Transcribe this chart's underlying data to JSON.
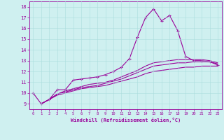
{
  "xlabel": "Windchill (Refroidissement éolien,°C)",
  "bg_color": "#cff0f0",
  "line_color": "#990099",
  "grid_color": "#aadddd",
  "xlim": [
    -0.5,
    23.5
  ],
  "ylim": [
    8.5,
    18.5
  ],
  "xticks": [
    0,
    1,
    2,
    3,
    4,
    5,
    6,
    7,
    8,
    9,
    10,
    11,
    12,
    13,
    14,
    15,
    16,
    17,
    18,
    19,
    20,
    21,
    22,
    23
  ],
  "yticks": [
    9,
    10,
    11,
    12,
    13,
    14,
    15,
    16,
    17,
    18
  ],
  "line1_x": [
    0,
    1,
    2,
    3,
    4,
    5,
    6,
    7,
    8,
    9,
    10,
    11,
    12,
    13,
    14,
    15,
    16,
    17,
    18,
    19,
    20,
    21,
    22,
    23
  ],
  "line1_y": [
    10.0,
    9.0,
    9.4,
    10.3,
    10.3,
    11.2,
    11.3,
    11.4,
    11.5,
    11.7,
    12.0,
    12.4,
    13.2,
    15.2,
    17.0,
    17.8,
    16.7,
    17.2,
    15.8,
    13.4,
    13.0,
    13.0,
    12.9,
    12.6
  ],
  "line2_x": [
    1,
    2,
    3,
    4,
    5,
    6,
    7,
    8,
    9,
    10,
    11,
    12,
    13,
    14,
    15,
    16,
    17,
    18,
    19,
    20,
    21,
    22,
    23
  ],
  "line2_y": [
    9.0,
    9.4,
    9.8,
    10.0,
    10.2,
    10.4,
    10.5,
    10.6,
    10.7,
    10.9,
    11.1,
    11.3,
    11.5,
    11.8,
    12.0,
    12.1,
    12.2,
    12.3,
    12.4,
    12.4,
    12.5,
    12.5,
    12.5
  ],
  "line3_x": [
    1,
    2,
    3,
    4,
    5,
    6,
    7,
    8,
    9,
    10,
    11,
    12,
    13,
    14,
    15,
    16,
    17,
    18,
    19,
    20,
    21,
    22,
    23
  ],
  "line3_y": [
    9.0,
    9.4,
    9.9,
    10.1,
    10.3,
    10.5,
    10.6,
    10.7,
    10.9,
    11.1,
    11.3,
    11.6,
    11.9,
    12.2,
    12.5,
    12.6,
    12.7,
    12.8,
    12.8,
    12.9,
    12.9,
    12.9,
    12.7
  ],
  "line4_x": [
    1,
    2,
    3,
    4,
    5,
    6,
    7,
    8,
    9,
    10,
    11,
    12,
    13,
    14,
    15,
    16,
    17,
    18,
    19,
    20,
    21,
    22,
    23
  ],
  "line4_y": [
    9.0,
    9.4,
    9.9,
    10.2,
    10.4,
    10.6,
    10.8,
    10.9,
    11.0,
    11.2,
    11.5,
    11.8,
    12.1,
    12.5,
    12.8,
    12.9,
    13.0,
    13.1,
    13.1,
    13.1,
    13.1,
    13.0,
    12.8
  ],
  "figsize": [
    3.2,
    2.0
  ],
  "dpi": 100
}
